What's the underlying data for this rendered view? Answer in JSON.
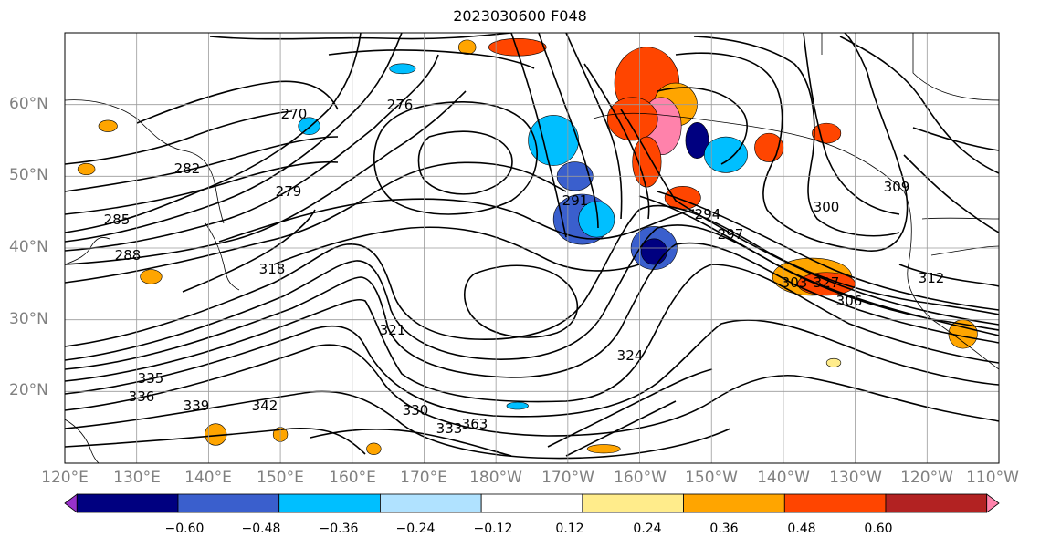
{
  "title": "2023030600 F048",
  "lat_labels": [
    {
      "text": "60°N",
      "lat": 60
    },
    {
      "text": "50°N",
      "lat": 50
    },
    {
      "text": "40°N",
      "lat": 40
    },
    {
      "text": "30°N",
      "lat": 30
    },
    {
      "text": "20°N",
      "lat": 20
    }
  ],
  "lon_labels": [
    "120°E",
    "130°E",
    "140°E",
    "150°E",
    "160°E",
    "170°E",
    "180°W",
    "170°W",
    "160°W",
    "150°W",
    "140°W",
    "130°W",
    "120°W",
    "110°W"
  ],
  "extent": {
    "lon_min": 120,
    "lon_max": 250,
    "lat_min": 10,
    "lat_max": 70
  },
  "colorbar": {
    "colors": [
      "#9932cc",
      "#000080",
      "#3a5fcd",
      "#00bfff",
      "#b0e2ff",
      "#ffffff",
      "#ffec8b",
      "#ffa500",
      "#ff4500",
      "#b22222",
      "#ff82ab"
    ],
    "tick_labels": [
      "−0.60",
      "−0.48",
      "−0.36",
      "−0.24",
      "−0.12",
      "0.12",
      "0.24",
      "0.36",
      "0.48",
      "0.60"
    ],
    "extend": "both"
  },
  "contour_labels": [
    "270",
    "276",
    "279",
    "282",
    "285",
    "288",
    "291",
    "294",
    "297",
    "300",
    "303",
    "306",
    "309",
    "312",
    "318",
    "321",
    "324",
    "327",
    "330",
    "333",
    "335",
    "336",
    "339",
    "342",
    "363"
  ],
  "shading_blobs": [
    {
      "lon": 201,
      "lat": 63,
      "rx": 4.5,
      "ry": 5,
      "color": "#ff4500"
    },
    {
      "lon": 205,
      "lat": 60,
      "rx": 3,
      "ry": 3,
      "color": "#ffa500"
    },
    {
      "lon": 203,
      "lat": 57,
      "rx": 2.8,
      "ry": 4,
      "color": "#ff82ab"
    },
    {
      "lon": 199,
      "lat": 58,
      "rx": 3.5,
      "ry": 3,
      "color": "#ff4500"
    },
    {
      "lon": 201,
      "lat": 52,
      "rx": 2,
      "ry": 3.5,
      "color": "#ff4500"
    },
    {
      "lon": 188,
      "lat": 55,
      "rx": 3.5,
      "ry": 3.5,
      "color": "#00bfff"
    },
    {
      "lon": 191,
      "lat": 50,
      "rx": 2.5,
      "ry": 2,
      "color": "#3a5fcd"
    },
    {
      "lon": 192,
      "lat": 44,
      "rx": 4,
      "ry": 3.5,
      "color": "#3a5fcd"
    },
    {
      "lon": 194,
      "lat": 44,
      "rx": 2.5,
      "ry": 2.5,
      "color": "#00bfff"
    },
    {
      "lon": 202,
      "lat": 40,
      "rx": 3.2,
      "ry": 3,
      "color": "#3a5fcd"
    },
    {
      "lon": 202,
      "lat": 39.5,
      "rx": 1.8,
      "ry": 1.8,
      "color": "#000080"
    },
    {
      "lon": 208,
      "lat": 55,
      "rx": 1.6,
      "ry": 2.5,
      "color": "#000080"
    },
    {
      "lon": 212,
      "lat": 53,
      "rx": 3,
      "ry": 2.5,
      "color": "#00bfff"
    },
    {
      "lon": 218,
      "lat": 54,
      "rx": 2,
      "ry": 2,
      "color": "#ff4500"
    },
    {
      "lon": 226,
      "lat": 56,
      "rx": 2,
      "ry": 1.4,
      "color": "#ff4500"
    },
    {
      "lon": 206,
      "lat": 47,
      "rx": 2.5,
      "ry": 1.6,
      "color": "#ff4500"
    },
    {
      "lon": 224,
      "lat": 36,
      "rx": 5.5,
      "ry": 2.6,
      "color": "#ffa500"
    },
    {
      "lon": 226,
      "lat": 35,
      "rx": 4,
      "ry": 1.6,
      "color": "#ff4500"
    },
    {
      "lon": 183,
      "lat": 68,
      "rx": 4,
      "ry": 1.2,
      "color": "#ff4500"
    },
    {
      "lon": 154,
      "lat": 57,
      "rx": 1.5,
      "ry": 1.2,
      "color": "#00bfff"
    },
    {
      "lon": 176,
      "lat": 68,
      "rx": 1.2,
      "ry": 1.0,
      "color": "#ffa500"
    },
    {
      "lon": 167,
      "lat": 65,
      "rx": 1.8,
      "ry": 0.7,
      "color": "#00bfff"
    },
    {
      "lon": 126,
      "lat": 57,
      "rx": 1.3,
      "ry": 0.8,
      "color": "#ffa500"
    },
    {
      "lon": 123,
      "lat": 51,
      "rx": 1.2,
      "ry": 0.8,
      "color": "#ffa500"
    },
    {
      "lon": 132,
      "lat": 36,
      "rx": 1.5,
      "ry": 1.0,
      "color": "#ffa500"
    },
    {
      "lon": 141,
      "lat": 14,
      "rx": 1.5,
      "ry": 1.5,
      "color": "#ffa500"
    },
    {
      "lon": 150,
      "lat": 14,
      "rx": 1,
      "ry": 1,
      "color": "#ffa500"
    },
    {
      "lon": 183,
      "lat": 18,
      "rx": 1.5,
      "ry": 0.5,
      "color": "#00bfff"
    },
    {
      "lon": 195,
      "lat": 12,
      "rx": 2.3,
      "ry": 0.6,
      "color": "#ffa500"
    },
    {
      "lon": 163,
      "lat": 12,
      "rx": 1,
      "ry": 0.8,
      "color": "#ffa500"
    },
    {
      "lon": 245,
      "lat": 28,
      "rx": 2,
      "ry": 2,
      "color": "#ffa500"
    },
    {
      "lon": 227,
      "lat": 24,
      "rx": 1,
      "ry": 0.6,
      "color": "#ffec8b"
    }
  ]
}
